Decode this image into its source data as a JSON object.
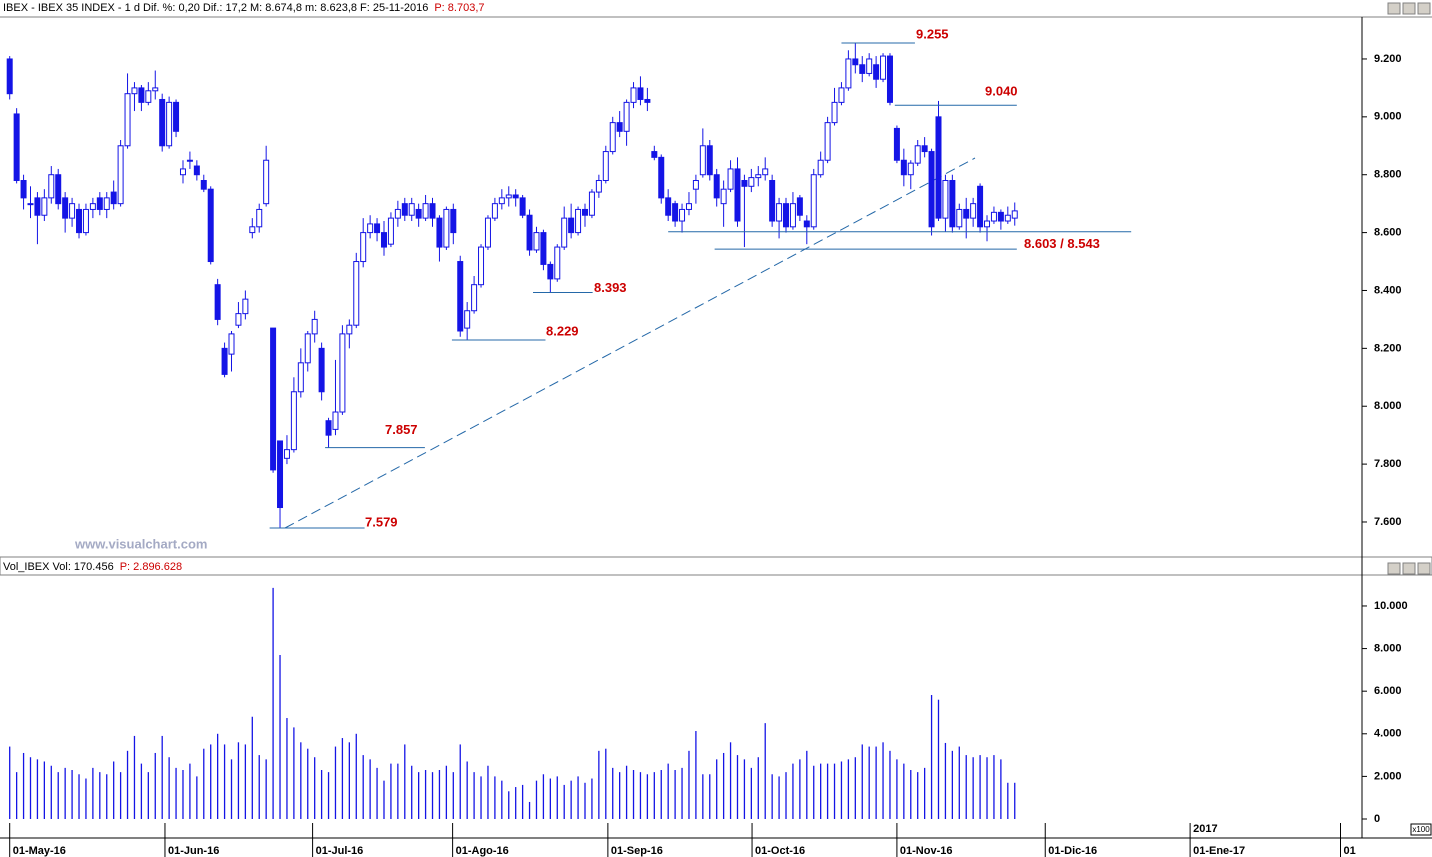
{
  "chart_data": [
    {
      "type": "candlestick",
      "title": "IBEX - IBEX 35 INDEX - 1 d  Dif. %: 0,20  Dif.: 17,2  M: 8.674,8  m: 8.623,8  F: 25-11-2016",
      "last_label": "P: 8.703,7",
      "watermark": "www.visualchart.com",
      "color": "#1414e6",
      "xlim": [
        -1.4,
        195.1
      ],
      "ylim": [
        7479,
        9345
      ],
      "yticks": [
        {
          "value": 7600,
          "label": "7.600"
        },
        {
          "value": 7800,
          "label": "7.800"
        },
        {
          "value": 8000,
          "label": "8.000"
        },
        {
          "value": 8200,
          "label": "8.200"
        },
        {
          "value": 8400,
          "label": "8.400"
        },
        {
          "value": 8600,
          "label": "8.600"
        },
        {
          "value": 8800,
          "label": "8.800"
        },
        {
          "value": 9000,
          "label": "9.000"
        },
        {
          "value": 9200,
          "label": "9.200"
        }
      ],
      "annotations": [
        {
          "label": "9.255",
          "values": [
            9255
          ]
        },
        {
          "label": "9.040",
          "values": [
            9040
          ]
        },
        {
          "label": "8.603 / 8.543",
          "values": [
            8603,
            8543
          ]
        },
        {
          "label": "8.393",
          "values": [
            8393
          ]
        },
        {
          "label": "8.229",
          "values": [
            8229
          ]
        },
        {
          "label": "7.857",
          "values": [
            7857
          ]
        },
        {
          "label": "7.579",
          "values": [
            7579
          ]
        }
      ],
      "candles": [
        [
          9200,
          9210,
          9060,
          9080
        ],
        [
          9010,
          9030,
          8770,
          8780
        ],
        [
          8780,
          8800,
          8680,
          8720
        ],
        [
          8700,
          8760,
          8650,
          8700
        ],
        [
          8720,
          8740,
          8560,
          8660
        ],
        [
          8660,
          8750,
          8640,
          8720
        ],
        [
          8720,
          8830,
          8700,
          8800
        ],
        [
          8800,
          8820,
          8680,
          8700
        ],
        [
          8720,
          8740,
          8600,
          8650
        ],
        [
          8650,
          8720,
          8620,
          8700
        ],
        [
          8680,
          8700,
          8580,
          8600
        ],
        [
          8600,
          8700,
          8590,
          8680
        ],
        [
          8680,
          8720,
          8650,
          8700
        ],
        [
          8720,
          8740,
          8660,
          8680
        ],
        [
          8680,
          8740,
          8650,
          8720
        ],
        [
          8740,
          8780,
          8680,
          8700
        ],
        [
          8700,
          8920,
          8690,
          8900
        ],
        [
          8900,
          9150,
          8890,
          9080
        ],
        [
          9080,
          9120,
          9020,
          9100
        ],
        [
          9100,
          9110,
          9020,
          9050
        ],
        [
          9050,
          9120,
          9040,
          9090
        ],
        [
          9090,
          9160,
          9060,
          9100
        ],
        [
          9060,
          9080,
          8880,
          8900
        ],
        [
          8900,
          9070,
          8890,
          9050
        ],
        [
          9050,
          9060,
          8930,
          8950
        ],
        [
          8800,
          8850,
          8770,
          8820
        ],
        [
          8850,
          8880,
          8820,
          8850
        ],
        [
          8830,
          8850,
          8780,
          8800
        ],
        [
          8780,
          8800,
          8740,
          8750
        ],
        [
          8750,
          8760,
          8490,
          8500
        ],
        [
          8420,
          8440,
          8280,
          8300
        ],
        [
          8200,
          8220,
          8100,
          8110
        ],
        [
          8180,
          8260,
          8120,
          8250
        ],
        [
          8280,
          8360,
          8270,
          8320
        ],
        [
          8320,
          8400,
          8300,
          8370
        ],
        [
          8600,
          8650,
          8580,
          8620
        ],
        [
          8620,
          8700,
          8600,
          8680
        ],
        [
          8700,
          8900,
          8690,
          8850
        ],
        [
          8270,
          8270,
          7770,
          7780
        ],
        [
          7880,
          7880,
          7579,
          7650
        ],
        [
          7820,
          7900,
          7800,
          7850
        ],
        [
          7850,
          8100,
          7840,
          8050
        ],
        [
          8050,
          8200,
          8030,
          8150
        ],
        [
          8150,
          8260,
          8120,
          8250
        ],
        [
          8250,
          8330,
          8220,
          8300
        ],
        [
          8200,
          8220,
          8020,
          8050
        ],
        [
          7950,
          7960,
          7857,
          7900
        ],
        [
          7920,
          8160,
          7900,
          7980
        ],
        [
          7980,
          8280,
          7970,
          8250
        ],
        [
          8250,
          8300,
          8200,
          8280
        ],
        [
          8280,
          8530,
          8270,
          8500
        ],
        [
          8500,
          8650,
          8480,
          8600
        ],
        [
          8600,
          8660,
          8580,
          8630
        ],
        [
          8630,
          8650,
          8570,
          8600
        ],
        [
          8600,
          8640,
          8520,
          8550
        ],
        [
          8560,
          8670,
          8550,
          8650
        ],
        [
          8650,
          8710,
          8620,
          8680
        ],
        [
          8700,
          8720,
          8640,
          8660
        ],
        [
          8660,
          8720,
          8640,
          8700
        ],
        [
          8680,
          8700,
          8620,
          8650
        ],
        [
          8650,
          8730,
          8640,
          8700
        ],
        [
          8700,
          8720,
          8620,
          8650
        ],
        [
          8650,
          8660,
          8500,
          8550
        ],
        [
          8550,
          8690,
          8540,
          8680
        ],
        [
          8680,
          8700,
          8560,
          8600
        ],
        [
          8500,
          8520,
          8240,
          8260
        ],
        [
          8270,
          8360,
          8229,
          8330
        ],
        [
          8330,
          8450,
          8320,
          8420
        ],
        [
          8420,
          8560,
          8410,
          8550
        ],
        [
          8550,
          8660,
          8540,
          8650
        ],
        [
          8650,
          8720,
          8640,
          8700
        ],
        [
          8700,
          8750,
          8680,
          8720
        ],
        [
          8720,
          8760,
          8690,
          8730
        ],
        [
          8730,
          8750,
          8690,
          8720
        ],
        [
          8720,
          8730,
          8650,
          8660
        ],
        [
          8660,
          8680,
          8520,
          8540
        ],
        [
          8540,
          8620,
          8530,
          8600
        ],
        [
          8600,
          8610,
          8470,
          8490
        ],
        [
          8490,
          8500,
          8393,
          8440
        ],
        [
          8440,
          8560,
          8430,
          8550
        ],
        [
          8550,
          8690,
          8540,
          8650
        ],
        [
          8650,
          8700,
          8580,
          8600
        ],
        [
          8600,
          8690,
          8590,
          8680
        ],
        [
          8680,
          8700,
          8620,
          8660
        ],
        [
          8660,
          8750,
          8650,
          8740
        ],
        [
          8740,
          8800,
          8720,
          8780
        ],
        [
          8780,
          8900,
          8770,
          8880
        ],
        [
          8880,
          9000,
          8870,
          8980
        ],
        [
          8980,
          9020,
          8930,
          8950
        ],
        [
          8950,
          9060,
          8900,
          9050
        ],
        [
          9050,
          9120,
          9030,
          9100
        ],
        [
          9100,
          9140,
          9040,
          9060
        ],
        [
          9060,
          9100,
          9020,
          9050
        ],
        [
          8880,
          8900,
          8850,
          8860
        ],
        [
          8860,
          8870,
          8700,
          8720
        ],
        [
          8720,
          8750,
          8640,
          8660
        ],
        [
          8700,
          8710,
          8620,
          8640
        ],
        [
          8640,
          8700,
          8600,
          8680
        ],
        [
          8680,
          8740,
          8660,
          8700
        ],
        [
          8750,
          8800,
          8700,
          8780
        ],
        [
          8800,
          8960,
          8790,
          8900
        ],
        [
          8900,
          8920,
          8780,
          8800
        ],
        [
          8800,
          8820,
          8690,
          8720
        ],
        [
          8700,
          8780,
          8620,
          8750
        ],
        [
          8750,
          8850,
          8740,
          8820
        ],
        [
          8820,
          8860,
          8620,
          8640
        ],
        [
          8780,
          8800,
          8550,
          8760
        ],
        [
          8760,
          8820,
          8740,
          8790
        ],
        [
          8790,
          8830,
          8760,
          8800
        ],
        [
          8800,
          8860,
          8780,
          8820
        ],
        [
          8780,
          8800,
          8620,
          8640
        ],
        [
          8640,
          8720,
          8580,
          8700
        ],
        [
          8700,
          8720,
          8600,
          8620
        ],
        [
          8620,
          8740,
          8610,
          8700
        ],
        [
          8720,
          8730,
          8640,
          8660
        ],
        [
          8640,
          8660,
          8560,
          8620
        ],
        [
          8620,
          8820,
          8610,
          8800
        ],
        [
          8800,
          8880,
          8790,
          8850
        ],
        [
          8850,
          9000,
          8840,
          8980
        ],
        [
          8980,
          9100,
          8970,
          9050
        ],
        [
          9050,
          9120,
          9040,
          9100
        ],
        [
          9100,
          9230,
          9090,
          9200
        ],
        [
          9200,
          9255,
          9150,
          9180
        ],
        [
          9180,
          9210,
          9120,
          9150
        ],
        [
          9150,
          9220,
          9140,
          9200
        ],
        [
          9180,
          9210,
          9100,
          9130
        ],
        [
          9130,
          9220,
          9120,
          9210
        ],
        [
          9210,
          9220,
          9040,
          9050
        ],
        [
          8960,
          8970,
          8840,
          8850
        ],
        [
          8850,
          8890,
          8760,
          8800
        ],
        [
          8800,
          8850,
          8750,
          8840
        ],
        [
          8840,
          8920,
          8830,
          8900
        ],
        [
          8900,
          8930,
          8860,
          8880
        ],
        [
          8880,
          8890,
          8590,
          8620
        ],
        [
          9000,
          9055,
          8640,
          8650
        ],
        [
          8650,
          8800,
          8603,
          8780
        ],
        [
          8780,
          8800,
          8600,
          8620
        ],
        [
          8620,
          8700,
          8610,
          8680
        ],
        [
          8680,
          8720,
          8580,
          8650
        ],
        [
          8650,
          8720,
          8620,
          8700
        ],
        [
          8760,
          8770,
          8600,
          8620
        ],
        [
          8620,
          8660,
          8570,
          8640
        ],
        [
          8640,
          8690,
          8630,
          8670
        ],
        [
          8670,
          8680,
          8610,
          8640
        ],
        [
          8640,
          8690,
          8630,
          8660
        ],
        [
          8650,
          8704,
          8624,
          8675
        ]
      ]
    },
    {
      "type": "bar",
      "title": "Vol_IBEX Vol: 170.456",
      "last_label": "P: 2.896.628",
      "unit_label": "x100",
      "year_label": "2017",
      "color": "#1414e6",
      "xlim": [
        -1.4,
        195.1
      ],
      "ylim": [
        0,
        11360
      ],
      "yticks": [
        0,
        {
          "value": 2000,
          "label": "2.000"
        },
        {
          "value": 4000,
          "label": "4.000"
        },
        {
          "value": 6000,
          "label": "6.000"
        },
        {
          "value": 8000,
          "label": "8.000"
        },
        {
          "value": 10000,
          "label": "10.000"
        }
      ],
      "xticks": [
        {
          "value": 0,
          "label": "01-May-16"
        },
        {
          "value": 22.4,
          "label": "01-Jun-16"
        },
        {
          "value": 43.7,
          "label": "01-Jul-16"
        },
        {
          "value": 63.9,
          "label": "01-Ago-16"
        },
        {
          "value": 86.3,
          "label": "01-Sep-16"
        },
        {
          "value": 107.1,
          "label": "01-Oct-16"
        },
        {
          "value": 128,
          "label": "01-Nov-16"
        },
        {
          "value": 149.4,
          "label": "01-Dic-16"
        },
        {
          "value": 170.3,
          "label": "01-Ene-17"
        },
        {
          "value": 192,
          "label": "01"
        }
      ],
      "values": [
        3400,
        2200,
        3100,
        2900,
        2800,
        2700,
        2500,
        2200,
        2400,
        2300,
        2100,
        1900,
        2400,
        2200,
        2100,
        2700,
        2200,
        3200,
        3900,
        2600,
        2200,
        3100,
        3900,
        2900,
        2400,
        2300,
        2600,
        2000,
        3300,
        3500,
        4000,
        3500,
        2800,
        3600,
        3500,
        4800,
        3000,
        2800,
        10850,
        7700,
        4740,
        4300,
        3600,
        3300,
        2900,
        2300,
        2200,
        3400,
        3800,
        3600,
        4000,
        3000,
        2800,
        2400,
        1800,
        2600,
        2600,
        3500,
        2500,
        2200,
        2300,
        2200,
        2300,
        2500,
        2200,
        3500,
        2700,
        2200,
        2000,
        2500,
        2000,
        1800,
        1300,
        1500,
        1600,
        800,
        1800,
        2100,
        1900,
        2000,
        1600,
        1800,
        2000,
        1700,
        1900,
        3200,
        3300,
        2400,
        2200,
        2500,
        2300,
        2200,
        2100,
        2200,
        2300,
        2600,
        2300,
        2400,
        3200,
        4130,
        2100,
        2100,
        2800,
        3100,
        3600,
        3000,
        2800,
        2400,
        2900,
        4500,
        2100,
        2000,
        2200,
        2600,
        2800,
        3200,
        2500,
        2600,
        2600,
        2600,
        2700,
        2800,
        2900,
        3500,
        3400,
        3400,
        3600,
        3200,
        2800,
        2600,
        2300,
        2200,
        2400,
        5820,
        5600,
        3570,
        3200,
        3400,
        3000,
        2900,
        3000,
        2900,
        3000,
        2800,
        1700,
        1700
      ]
    }
  ]
}
